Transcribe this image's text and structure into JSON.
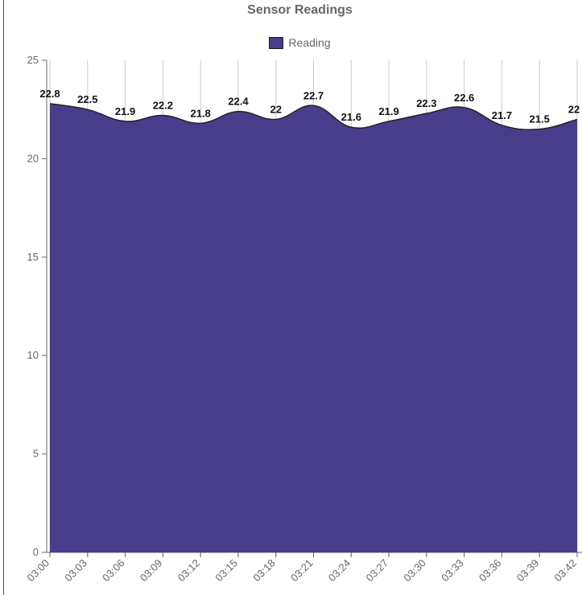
{
  "chart_data": {
    "type": "area",
    "title": "Sensor Readings",
    "legend_position": "top",
    "series": [
      {
        "name": "Reading",
        "color": "#483D8B",
        "values": [
          22.8,
          22.5,
          21.9,
          22.2,
          21.8,
          22.4,
          22,
          22.7,
          21.6,
          21.9,
          22.3,
          22.6,
          21.7,
          21.5,
          22
        ]
      }
    ],
    "x": [
      "03:00",
      "03:03",
      "03:06",
      "03:09",
      "03:12",
      "03:15",
      "03:18",
      "03:21",
      "03:24",
      "03:27",
      "03:30",
      "03:33",
      "03:36",
      "03:39",
      "03:42"
    ],
    "yticks": [
      0,
      5,
      10,
      15,
      20,
      25
    ],
    "ylim": [
      0,
      25
    ],
    "grid": {
      "vertical": true,
      "horizontal": false
    },
    "xlabel": "",
    "ylabel": ""
  }
}
